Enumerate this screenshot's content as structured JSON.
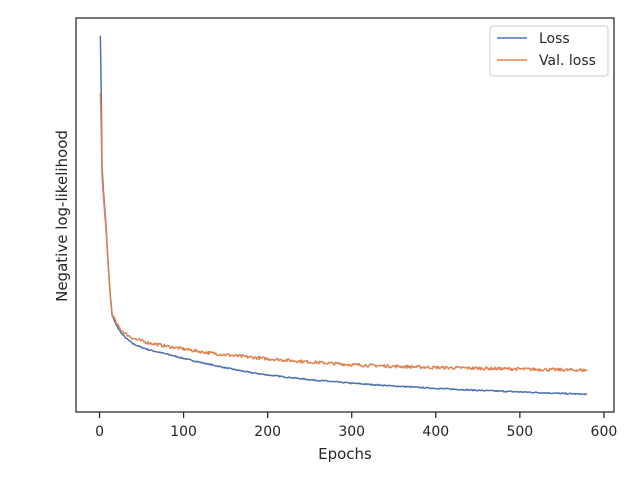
{
  "chart_data": {
    "type": "line",
    "title": "",
    "xlabel": "Epochs",
    "ylabel": "Negative log-likelihood",
    "xlim": [
      -28,
      612
    ],
    "ylim": [
      0,
      1
    ],
    "yticks_visible": false,
    "grid": false,
    "legend_placement": "top-right",
    "x_ticks": [
      {
        "value": 0,
        "label": "0"
      },
      {
        "value": 100,
        "label": "100"
      },
      {
        "value": 200,
        "label": "200"
      },
      {
        "value": 300,
        "label": "300"
      },
      {
        "value": 400,
        "label": "400"
      },
      {
        "value": 500,
        "label": "500"
      },
      {
        "value": 600,
        "label": "600"
      }
    ],
    "series": [
      {
        "name": "Loss",
        "color": "#4c72b0",
        "x": [
          1,
          2,
          3,
          5,
          8,
          10,
          13,
          15,
          20,
          25,
          30,
          35,
          40,
          50,
          60,
          80,
          100,
          120,
          150,
          180,
          200,
          250,
          300,
          350,
          400,
          450,
          500,
          550,
          580
        ],
        "y": [
          0.955,
          0.81,
          0.62,
          0.55,
          0.465,
          0.385,
          0.29,
          0.245,
          0.22,
          0.203,
          0.19,
          0.181,
          0.173,
          0.164,
          0.157,
          0.147,
          0.136,
          0.126,
          0.112,
          0.1,
          0.094,
          0.082,
          0.073,
          0.066,
          0.06,
          0.055,
          0.051,
          0.047,
          0.045
        ]
      },
      {
        "name": "Val. loss",
        "color": "#dd8452",
        "noise": 0.004,
        "x": [
          1,
          2,
          3,
          5,
          8,
          10,
          13,
          15,
          20,
          25,
          30,
          35,
          40,
          50,
          60,
          80,
          100,
          120,
          150,
          180,
          200,
          250,
          300,
          350,
          400,
          450,
          500,
          550,
          580
        ],
        "y": [
          0.81,
          0.72,
          0.6,
          0.535,
          0.455,
          0.38,
          0.29,
          0.25,
          0.225,
          0.21,
          0.2,
          0.193,
          0.187,
          0.18,
          0.175,
          0.167,
          0.16,
          0.153,
          0.145,
          0.139,
          0.135,
          0.127,
          0.12,
          0.116,
          0.113,
          0.111,
          0.109,
          0.107,
          0.106
        ]
      }
    ]
  }
}
